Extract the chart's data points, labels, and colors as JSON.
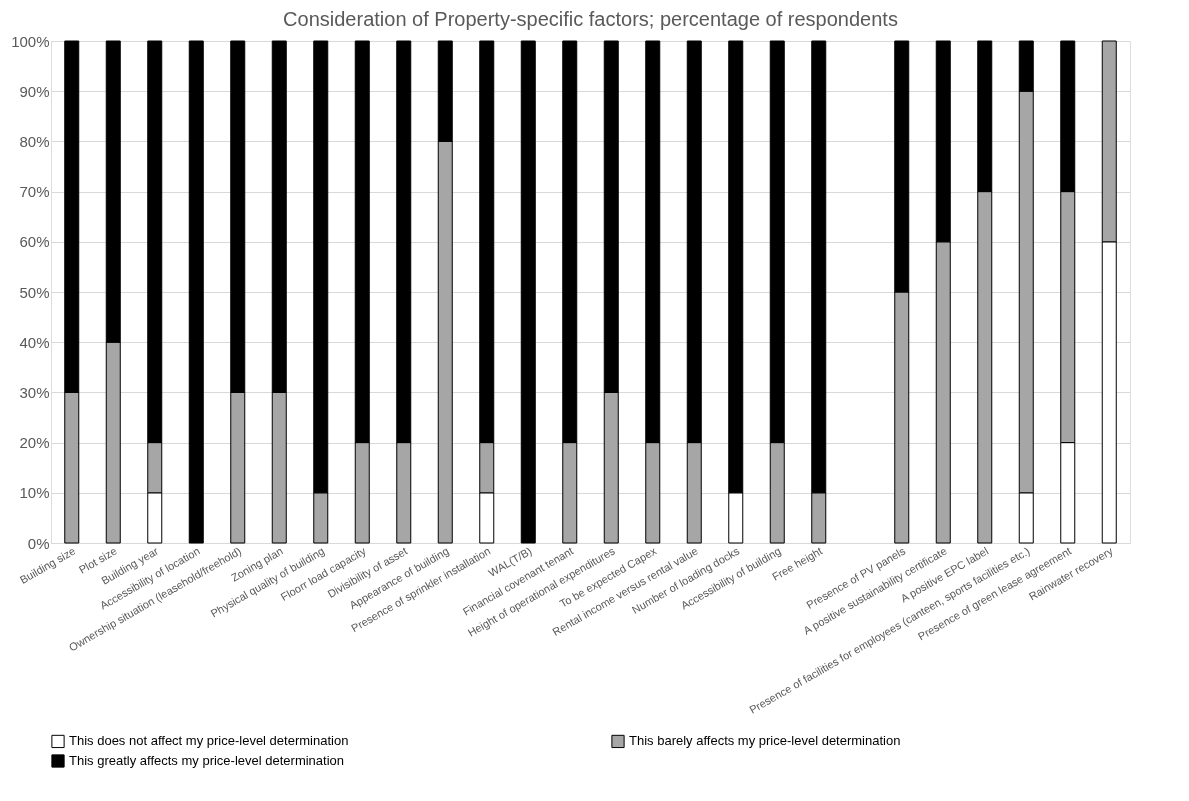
{
  "chart_data": {
    "type": "bar",
    "stacked": true,
    "title": "Consideration of Property-specific factors; percentage of respondents",
    "categories": [
      "Building size",
      "Plot size",
      "Building year",
      "Accessibility of location",
      "Ownership situation (leasehold/freehold)",
      "Zoning plan",
      "Physical quality of building",
      "Floorr load capacity",
      "Divisibility of asset",
      "Appearance of building",
      "Presence of sprinkler installation",
      "WAL(T/B)",
      "Financial covenant tenant",
      "Height of operational expenditures",
      "To be expected Capex",
      "Rental income versus rental value",
      "Number of loading docks",
      "Accessibility of building",
      "Free height",
      null,
      "Presence of PV panels",
      "A positive sustainability certificate",
      "A positive EPC label",
      "Presence of facilities for employees (canteen, sports facilities etc.)",
      "Presence of green lease agreement",
      "Rainwater recovery"
    ],
    "series": [
      {
        "name": "This does not affect my price-level determination",
        "color": "#ffffff",
        "values": [
          0,
          0,
          10,
          0,
          0,
          0,
          0,
          0,
          0,
          0,
          10,
          0,
          0,
          0,
          0,
          0,
          10,
          0,
          0,
          null,
          0,
          0,
          0,
          10,
          20,
          60
        ]
      },
      {
        "name": "This barely affects my price-level determination",
        "color": "#a6a6a6",
        "values": [
          30,
          40,
          10,
          0,
          30,
          30,
          10,
          20,
          20,
          80,
          10,
          0,
          20,
          30,
          20,
          20,
          0,
          20,
          10,
          null,
          50,
          60,
          70,
          80,
          50,
          40
        ]
      },
      {
        "name": "This greatly affects my price-level determination",
        "color": "#000000",
        "values": [
          70,
          60,
          80,
          100,
          70,
          70,
          90,
          80,
          80,
          20,
          80,
          100,
          80,
          70,
          80,
          80,
          90,
          80,
          90,
          null,
          50,
          40,
          30,
          10,
          30,
          0
        ]
      }
    ],
    "ylim": [
      0,
      100
    ],
    "yticks": [
      {
        "value": 0,
        "label": "0%"
      },
      {
        "value": 10,
        "label": "10%"
      },
      {
        "value": 20,
        "label": "20%"
      },
      {
        "value": 30,
        "label": "30%"
      },
      {
        "value": 40,
        "label": "40%"
      },
      {
        "value": 50,
        "label": "50%"
      },
      {
        "value": 60,
        "label": "60%"
      },
      {
        "value": 70,
        "label": "70%"
      },
      {
        "value": 80,
        "label": "80%"
      },
      {
        "value": 90,
        "label": "90%"
      },
      {
        "value": 100,
        "label": "100%"
      }
    ],
    "grid": "y",
    "legend": "bottom"
  }
}
